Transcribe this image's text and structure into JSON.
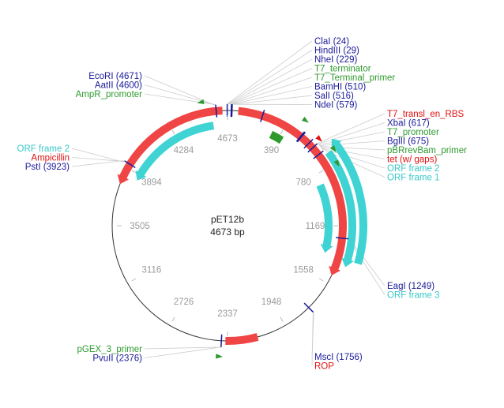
{
  "plasmid": {
    "name": "pET12b",
    "length_label": "4673 bp",
    "length": 4673
  },
  "colors": {
    "enzyme": "#1a1a99",
    "promoter": "#2e9a2e",
    "gene": "#e01010",
    "orf": "#39c9c9",
    "gene_fill": "#f04545",
    "orf_fill": "#3fd3d3",
    "backbone": "#333333",
    "leader": "#cccccc"
  },
  "ticks": [
    "4673",
    "390",
    "780",
    "1169",
    "1558",
    "1948",
    "2337",
    "2726",
    "3116",
    "3505",
    "3894",
    "4284"
  ],
  "labels": {
    "top_right": [
      {
        "text": "ClaI (24)",
        "type": "enzyme"
      },
      {
        "text": "HindIII (29)",
        "type": "enzyme"
      },
      {
        "text": "NheI (229)",
        "type": "enzyme"
      },
      {
        "text": "T7_terminator",
        "type": "promoter"
      },
      {
        "text": "T7_Terminal_primer",
        "type": "promoter"
      },
      {
        "text": "BamHI (510)",
        "type": "enzyme"
      },
      {
        "text": "SalI (516)",
        "type": "enzyme"
      },
      {
        "text": "NdeI (579)",
        "type": "enzyme"
      }
    ],
    "right": [
      {
        "text": "T7_transl_en_RBS",
        "type": "gene"
      },
      {
        "text": "XbaI (617)",
        "type": "enzyme"
      },
      {
        "text": "T7_promoter",
        "type": "promoter"
      },
      {
        "text": "BglII (675)",
        "type": "enzyme"
      },
      {
        "text": "pBRrevBam_primer",
        "type": "promoter"
      },
      {
        "text": "tet (w/ gaps)",
        "type": "gene"
      },
      {
        "text": "ORF frame 2",
        "type": "orf"
      },
      {
        "text": "ORF frame 1",
        "type": "orf"
      }
    ],
    "lower_right": [
      {
        "text": "EagI (1249)",
        "type": "enzyme"
      },
      {
        "text": "ORF frame 3",
        "type": "orf"
      }
    ],
    "bottom": [
      {
        "text": "MscI (1756)",
        "type": "enzyme"
      },
      {
        "text": "ROP",
        "type": "gene"
      }
    ],
    "top_left": [
      {
        "text": "EcoRI (4671)",
        "type": "enzyme"
      },
      {
        "text": "AatII (4600)",
        "type": "enzyme"
      },
      {
        "text": "AmpR_promoter",
        "type": "promoter"
      }
    ],
    "left": [
      {
        "text": "ORF frame 2",
        "type": "orf"
      },
      {
        "text": "Ampicillin",
        "type": "gene"
      },
      {
        "text": "PstI (3923)",
        "type": "enzyme"
      }
    ],
    "bottom_left": [
      {
        "text": "pGEX_3_primer",
        "type": "promoter"
      },
      {
        "text": "PvuII (2376)",
        "type": "enzyme"
      }
    ]
  },
  "features": [
    {
      "name": "Ampicillin",
      "type": "gene",
      "ring": "outer",
      "start": 3780,
      "end": 4640,
      "dir": -1
    },
    {
      "name": "ORF frame 2 (left)",
      "type": "orf",
      "ring": "inner",
      "start": 3850,
      "end": 4570,
      "dir": -1
    },
    {
      "name": "tet (w/ gaps)",
      "type": "gene",
      "ring": "outer",
      "start": 70,
      "end": 1500,
      "dir": 1
    },
    {
      "name": "ORF frame 2 (right)",
      "type": "orf",
      "ring": "far",
      "start": 650,
      "end": 1380,
      "dir": -1
    },
    {
      "name": "ORF frame 1",
      "type": "orf",
      "ring": "mid",
      "start": 700,
      "end": 1420,
      "dir": 1
    },
    {
      "name": "ORF frame 3",
      "type": "orf",
      "ring": "inner",
      "start": 860,
      "end": 1370,
      "dir": 1
    },
    {
      "name": "ROP",
      "type": "gene",
      "ring": "outer",
      "start": 2140,
      "end": 2350,
      "dir": 0
    },
    {
      "name": "T7_terminator",
      "type": "promoter",
      "ring": "inner",
      "start": 330,
      "end": 420,
      "dir": 0
    }
  ],
  "sites": [
    {
      "name": "ClaI",
      "pos": 24,
      "type": "enzyme"
    },
    {
      "name": "HindIII",
      "pos": 29,
      "type": "enzyme"
    },
    {
      "name": "EcoRI",
      "pos": 4671,
      "type": "enzyme"
    },
    {
      "name": "AatII",
      "pos": 4600,
      "type": "enzyme"
    },
    {
      "name": "NheI",
      "pos": 229,
      "type": "enzyme"
    },
    {
      "name": "BamHI",
      "pos": 510,
      "type": "enzyme"
    },
    {
      "name": "SalI",
      "pos": 516,
      "type": "enzyme"
    },
    {
      "name": "NdeI",
      "pos": 579,
      "type": "enzyme"
    },
    {
      "name": "XbaI",
      "pos": 617,
      "type": "enzyme"
    },
    {
      "name": "BglII",
      "pos": 675,
      "type": "enzyme"
    },
    {
      "name": "EagI",
      "pos": 1249,
      "type": "enzyme"
    },
    {
      "name": "MscI",
      "pos": 1756,
      "type": "enzyme"
    },
    {
      "name": "PvuII",
      "pos": 2376,
      "type": "enzyme"
    },
    {
      "name": "PstI",
      "pos": 3923,
      "type": "enzyme"
    }
  ],
  "markers": [
    {
      "name": "AmpR_promoter",
      "pos": 4520,
      "type": "promoter",
      "dir": -1
    },
    {
      "name": "T7_Terminal_primer",
      "pos": 470,
      "type": "promoter",
      "dir": 1
    },
    {
      "name": "T7_transl_en_RBS",
      "pos": 600,
      "type": "gene",
      "dir": 1
    },
    {
      "name": "T7_promoter",
      "pos": 700,
      "type": "promoter",
      "dir": 1
    },
    {
      "name": "pBRrevBam_primer",
      "pos": 780,
      "type": "promoter",
      "dir": 1
    },
    {
      "name": "pGEX_3_primer",
      "pos": 2390,
      "type": "promoter",
      "dir": -1
    }
  ]
}
